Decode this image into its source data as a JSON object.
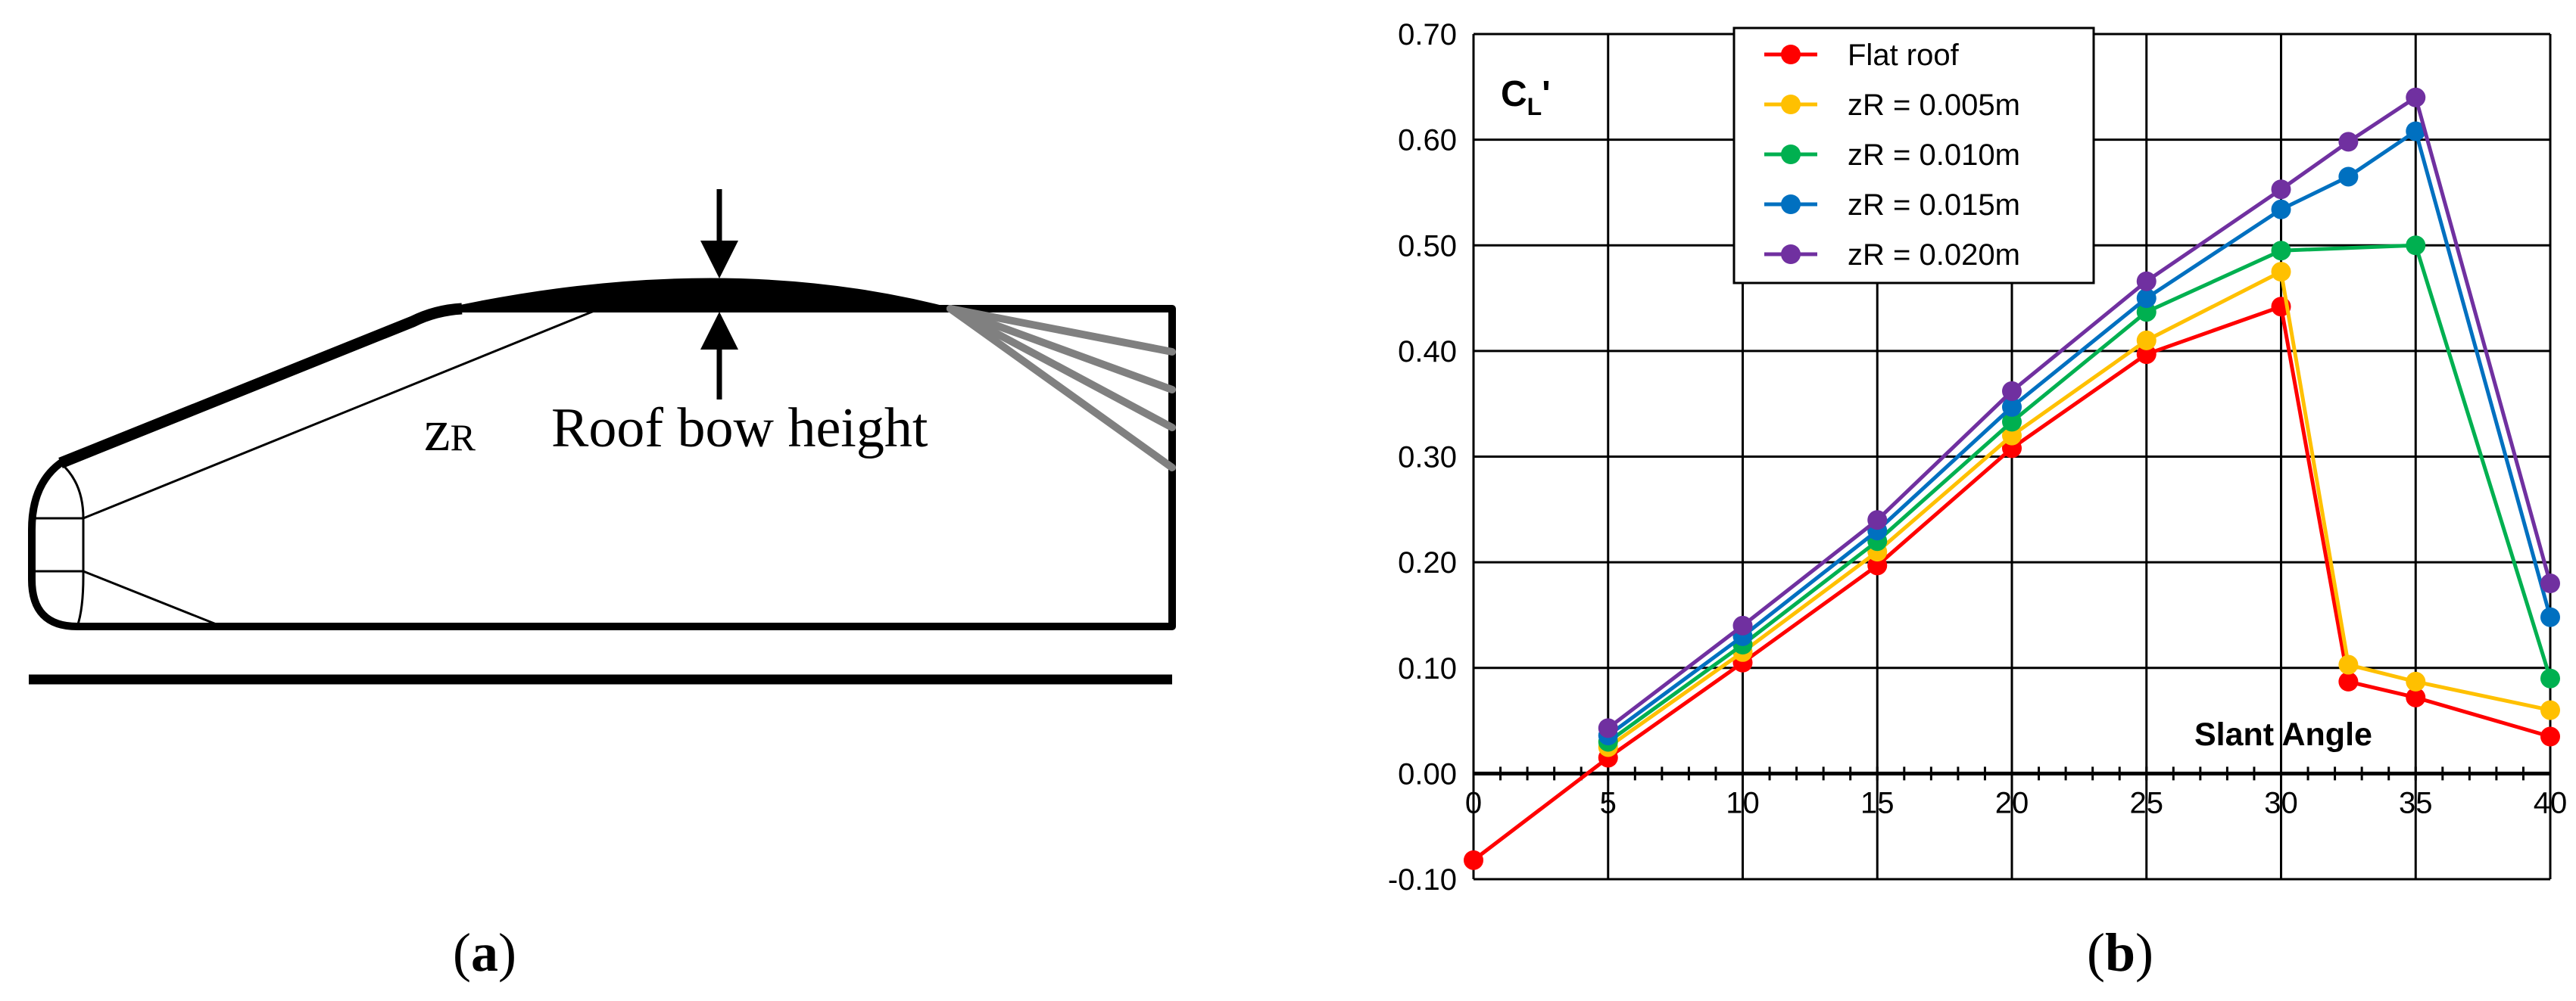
{
  "panel_a": {
    "label_open": "(",
    "label_letter": "a",
    "label_close": ")",
    "z_symbol": "z",
    "z_subscript": "R",
    "roof_text": "Roof bow height"
  },
  "panel_b": {
    "label_open": "(",
    "label_letter": "b",
    "label_close": ")"
  },
  "chart_data": {
    "type": "line",
    "y_axis_label_main": "C",
    "y_axis_label_sub": "L",
    "y_axis_label_prime": "'",
    "xlabel": "Slant Angle",
    "x_ticks": [
      0,
      5,
      10,
      15,
      20,
      25,
      30,
      35,
      40
    ],
    "y_ticks": [
      -0.1,
      0.0,
      0.1,
      0.2,
      0.3,
      0.4,
      0.5,
      0.6,
      0.7
    ],
    "xlim": [
      0,
      40
    ],
    "ylim": [
      -0.1,
      0.7
    ],
    "grid": true,
    "legend_position": "top-left",
    "series": [
      {
        "name": "Flat roof",
        "color": "#ff0000",
        "x": [
          0,
          5,
          10,
          15,
          20,
          25,
          30,
          32.5,
          35,
          40
        ],
        "y": [
          -0.082,
          0.015,
          0.105,
          0.197,
          0.308,
          0.397,
          0.442,
          0.087,
          0.072,
          0.035
        ]
      },
      {
        "name": "zR = 0.005m",
        "color": "#ffc000",
        "x": [
          5,
          10,
          15,
          20,
          25,
          30,
          32.5,
          35,
          40
        ],
        "y": [
          0.025,
          0.115,
          0.21,
          0.32,
          0.41,
          0.475,
          0.103,
          0.087,
          0.06
        ]
      },
      {
        "name": "zR = 0.010m",
        "color": "#00b050",
        "x": [
          5,
          10,
          15,
          20,
          25,
          30,
          35,
          40
        ],
        "y": [
          0.03,
          0.122,
          0.22,
          0.333,
          0.437,
          0.495,
          0.5,
          0.09
        ]
      },
      {
        "name": "zR = 0.015m",
        "color": "#0070c0",
        "x": [
          5,
          10,
          15,
          20,
          25,
          30,
          32.5,
          35,
          40
        ],
        "y": [
          0.036,
          0.13,
          0.23,
          0.347,
          0.45,
          0.534,
          0.565,
          0.608,
          0.148
        ]
      },
      {
        "name": "zR = 0.020m",
        "color": "#7030a0",
        "x": [
          5,
          10,
          15,
          20,
          25,
          30,
          32.5,
          35,
          40
        ],
        "y": [
          0.043,
          0.14,
          0.24,
          0.362,
          0.466,
          0.553,
          0.598,
          0.64,
          0.18
        ]
      }
    ]
  }
}
